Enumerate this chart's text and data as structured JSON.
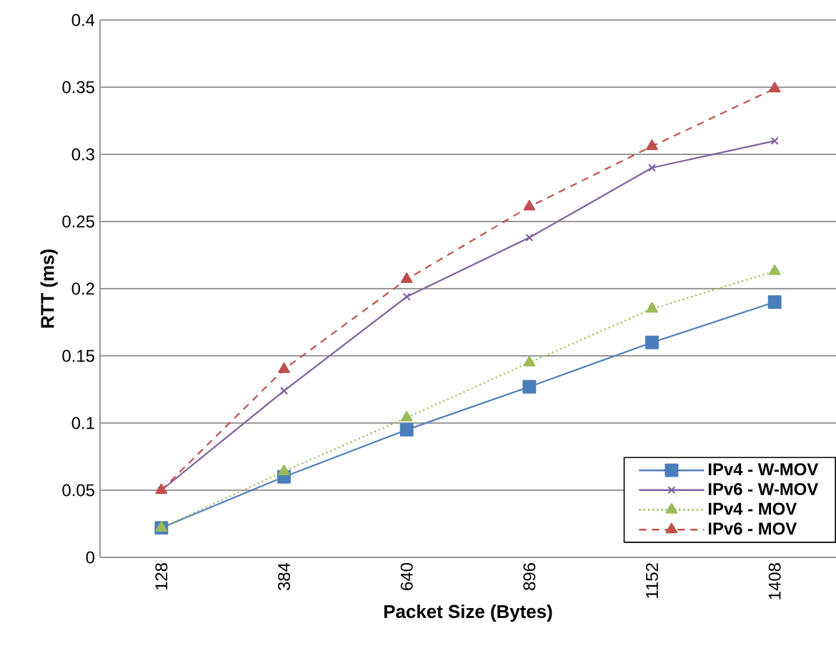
{
  "chart_data": {
    "type": "line",
    "xlabel": "Packet Size (Bytes)",
    "ylabel": "RTT (ms)",
    "categories": [
      "128",
      "384",
      "640",
      "896",
      "1152",
      "1408"
    ],
    "series": [
      {
        "name": "IPv4 - W-MOV",
        "color": "#4a7ebb",
        "marker": "square",
        "line_style": "solid",
        "values": [
          0.022,
          0.06,
          0.095,
          0.127,
          0.16,
          0.19
        ]
      },
      {
        "name": "IPv6 - W-MOV",
        "color": "#7d5fa0",
        "marker": "cross",
        "line_style": "solid",
        "values": [
          0.05,
          0.124,
          0.194,
          0.238,
          0.29,
          0.31
        ]
      },
      {
        "name": "IPv4 - MOV",
        "color": "#9bbb59",
        "marker": "triangle",
        "line_style": "dotted",
        "values": [
          0.022,
          0.064,
          0.104,
          0.145,
          0.185,
          0.213
        ]
      },
      {
        "name": "IPv6 - MOV",
        "color": "#c0504d",
        "marker": "triangle",
        "line_style": "dashed",
        "values": [
          0.05,
          0.14,
          0.207,
          0.261,
          0.306,
          0.349
        ]
      }
    ],
    "ylim": [
      0,
      0.4
    ],
    "yticks": [
      0,
      0.05,
      0.1,
      0.15,
      0.2,
      0.25,
      0.3,
      0.35,
      0.4
    ],
    "grid": "y",
    "legend": "bottom right"
  }
}
